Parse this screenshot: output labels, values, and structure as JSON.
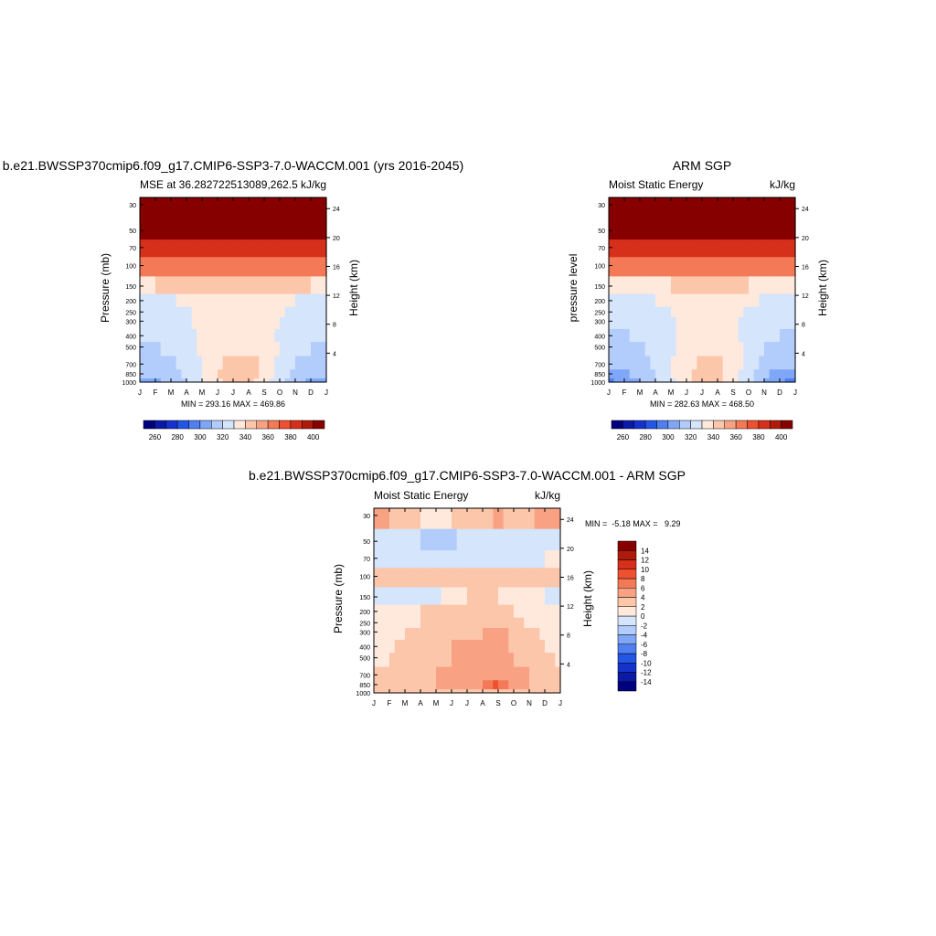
{
  "colors": {
    "mse_palette": [
      "#00007f",
      "#0a1aa6",
      "#1533cc",
      "#2456e6",
      "#4f7ff0",
      "#7fa6f7",
      "#b2ccfb",
      "#d4e5fc",
      "#ffe9dc",
      "#fcc6ab",
      "#f9a283",
      "#f47a57",
      "#ee5030",
      "#d6301a",
      "#b01a0b",
      "#870000"
    ],
    "diff_palette": [
      "#00007f",
      "#0a1aa6",
      "#1533cc",
      "#2456e6",
      "#4f7ff0",
      "#7fa6f7",
      "#b2ccfb",
      "#d4e5fc",
      "#ffe9dc",
      "#fcc6ab",
      "#f9a283",
      "#f47a57",
      "#ee5030",
      "#d6301a",
      "#b01a0b",
      "#870000"
    ]
  },
  "panels": {
    "model": {
      "title": "b.e21.BWSSP370cmip6.f09_g17.CMIP6-SSP3-7.0-WACCM.001 (yrs 2016-2045)",
      "left_string": "MSE at 36.282722513089,262.5",
      "right_string": "kJ/kg",
      "ylabel": "Pressure (mb)",
      "y2label": "Height (km)",
      "stats": "MIN = 293.16 MAX = 469.86"
    },
    "obs": {
      "title": "ARM SGP",
      "left_string": "Moist Static Energy",
      "right_string": "kJ/kg",
      "ylabel": "pressure level",
      "y2label": "Height (km)",
      "stats": "MIN = 282.63 MAX = 468.50"
    },
    "diff": {
      "title": "b.e21.BWSSP370cmip6.f09_g17.CMIP6-SSP3-7.0-WACCM.001 - ARM SGP",
      "left_string": "Moist Static Energy",
      "right_string": "kJ/kg",
      "ylabel": "Pressure (mb)",
      "y2label": "Height (km)",
      "stats": "MIN =  -5.18 MAX =   9.29"
    }
  },
  "chart_data": [
    {
      "type": "heatmap",
      "name": "model",
      "x": [
        "J",
        "F",
        "M",
        "A",
        "M",
        "J",
        "J",
        "A",
        "S",
        "O",
        "N",
        "D",
        "J"
      ],
      "y_pressure": [
        1000,
        850,
        700,
        500,
        400,
        300,
        250,
        200,
        150,
        100,
        70,
        50,
        30
      ],
      "y_ticks": [
        1000,
        850,
        700,
        500,
        400,
        300,
        250,
        200,
        150,
        100,
        70,
        50,
        30
      ],
      "y2_ticks": [
        4,
        8,
        12,
        16,
        20,
        24
      ],
      "yscale": "log",
      "levels": [
        255,
        265,
        275,
        285,
        295,
        305,
        315,
        325,
        335,
        345,
        355,
        365,
        375,
        385,
        395
      ],
      "colorbar_labels": [
        "260",
        "280",
        "300",
        "320",
        "340",
        "360",
        "380",
        "400"
      ],
      "values": [
        [
          300,
          303,
          308,
          316,
          324,
          333,
          340,
          338,
          329,
          318,
          309,
          303,
          300
        ],
        [
          305,
          307,
          311,
          318,
          326,
          334,
          340,
          339,
          331,
          321,
          312,
          307,
          305
        ],
        [
          310,
          311,
          314,
          319,
          326,
          333,
          338,
          338,
          332,
          323,
          315,
          311,
          310
        ],
        [
          314,
          314,
          316,
          320,
          326,
          331,
          334,
          334,
          330,
          324,
          318,
          315,
          314
        ],
        [
          316,
          316,
          318,
          321,
          326,
          330,
          332,
          332,
          329,
          324,
          319,
          317,
          316
        ],
        [
          318,
          318,
          320,
          323,
          327,
          330,
          332,
          332,
          329,
          325,
          321,
          319,
          318
        ],
        [
          319,
          319,
          321,
          324,
          327,
          330,
          331,
          331,
          329,
          326,
          322,
          320,
          319
        ],
        [
          323,
          323,
          324,
          326,
          328,
          331,
          332,
          332,
          330,
          328,
          325,
          324,
          323
        ],
        [
          334,
          335,
          335,
          336,
          337,
          338,
          338,
          338,
          338,
          337,
          336,
          335,
          334
        ],
        [
          356,
          356,
          356,
          356,
          356,
          356,
          356,
          356,
          356,
          356,
          356,
          356,
          356
        ],
        [
          384,
          384,
          383,
          382,
          381,
          380,
          380,
          380,
          381,
          382,
          383,
          384,
          384
        ],
        [
          405,
          405,
          405,
          405,
          405,
          405,
          405,
          405,
          405,
          405,
          405,
          405,
          405
        ],
        [
          440,
          440,
          440,
          440,
          440,
          440,
          440,
          440,
          440,
          440,
          440,
          440,
          440
        ]
      ]
    },
    {
      "type": "heatmap",
      "name": "obs",
      "x": [
        "J",
        "F",
        "M",
        "A",
        "M",
        "J",
        "J",
        "A",
        "S",
        "O",
        "N",
        "D",
        "J"
      ],
      "y_pressure": [
        1000,
        850,
        700,
        500,
        400,
        300,
        250,
        200,
        150,
        100,
        70,
        50,
        30
      ],
      "y_ticks": [
        1000,
        850,
        700,
        500,
        400,
        300,
        250,
        200,
        150,
        100,
        70,
        50,
        30
      ],
      "y2_ticks": [
        4,
        8,
        12,
        16,
        20,
        24
      ],
      "yscale": "log",
      "levels": [
        255,
        265,
        275,
        285,
        295,
        305,
        315,
        325,
        335,
        345,
        355,
        365,
        375,
        385,
        395
      ],
      "colorbar_labels": [
        "260",
        "280",
        "300",
        "320",
        "340",
        "360",
        "380",
        "400"
      ],
      "values": [
        [
          293,
          298,
          305,
          314,
          323,
          333,
          339,
          338,
          329,
          317,
          305,
          296,
          293
        ],
        [
          299,
          302,
          308,
          316,
          324,
          333,
          339,
          338,
          330,
          319,
          308,
          301,
          299
        ],
        [
          305,
          307,
          311,
          317,
          325,
          332,
          336,
          336,
          331,
          321,
          312,
          307,
          305
        ],
        [
          311,
          312,
          314,
          318,
          324,
          329,
          331,
          331,
          328,
          322,
          315,
          312,
          311
        ],
        [
          314,
          314,
          316,
          319,
          323,
          327,
          328,
          328,
          326,
          322,
          317,
          315,
          314
        ],
        [
          317,
          317,
          318,
          321,
          324,
          327,
          328,
          328,
          326,
          323,
          320,
          318,
          317
        ],
        [
          318,
          318,
          320,
          322,
          325,
          327,
          328,
          328,
          326,
          324,
          321,
          319,
          318
        ],
        [
          322,
          322,
          323,
          325,
          327,
          329,
          330,
          330,
          329,
          327,
          324,
          323,
          322
        ],
        [
          333,
          333,
          334,
          334,
          335,
          336,
          336,
          336,
          336,
          335,
          334,
          334,
          333
        ],
        [
          356,
          356,
          356,
          356,
          356,
          356,
          356,
          356,
          356,
          356,
          356,
          356,
          356
        ],
        [
          384,
          384,
          383,
          382,
          381,
          380,
          380,
          380,
          381,
          382,
          383,
          384,
          384
        ],
        [
          405,
          405,
          405,
          405,
          405,
          405,
          405,
          405,
          405,
          405,
          405,
          405,
          405
        ],
        [
          440,
          440,
          440,
          440,
          440,
          440,
          440,
          440,
          440,
          440,
          440,
          440,
          440
        ]
      ]
    },
    {
      "type": "heatmap",
      "name": "diff",
      "x": [
        "J",
        "F",
        "M",
        "A",
        "M",
        "J",
        "J",
        "A",
        "S",
        "O",
        "N",
        "D",
        "J"
      ],
      "y_pressure": [
        1000,
        850,
        700,
        500,
        400,
        300,
        250,
        200,
        150,
        100,
        70,
        50,
        30
      ],
      "y_ticks": [
        1000,
        850,
        700,
        500,
        400,
        300,
        250,
        200,
        150,
        100,
        70,
        50,
        30
      ],
      "y2_ticks": [
        4,
        8,
        12,
        16,
        20,
        24
      ],
      "yscale": "log",
      "levels": [
        -15,
        -13,
        -11,
        -9,
        -7,
        -5,
        -3,
        -1,
        1,
        3,
        5,
        7,
        9,
        11,
        13
      ],
      "colorbar_labels": [
        "14",
        "12",
        "10",
        "8",
        "6",
        "4",
        "2",
        "0",
        "-2",
        "-4",
        "-6",
        "-8",
        "-10",
        "-12",
        "-14"
      ],
      "values": [
        [
          1.5,
          1.2,
          1.0,
          1.5,
          2.0,
          2.0,
          2.5,
          2.5,
          3.0,
          2.0,
          1.5,
          1.2,
          1.5
        ],
        [
          1.5,
          1.5,
          1.5,
          2.5,
          3.0,
          3.5,
          4.5,
          4.5,
          7.5,
          4.0,
          3.0,
          2.0,
          1.5
        ],
        [
          1.5,
          1.5,
          1.5,
          2.0,
          3.0,
          3.5,
          4.0,
          4.5,
          5.0,
          4.0,
          3.0,
          2.0,
          1.5
        ],
        [
          0.8,
          1.0,
          1.5,
          2.0,
          2.5,
          3.0,
          3.5,
          3.5,
          4.0,
          3.0,
          2.5,
          1.5,
          0.8
        ],
        [
          0.5,
          0.8,
          1.5,
          2.0,
          2.5,
          3.0,
          3.0,
          3.0,
          4.5,
          2.5,
          2.0,
          1.0,
          0.5
        ],
        [
          0.3,
          0.5,
          1.0,
          1.5,
          2.5,
          2.5,
          2.5,
          3.0,
          4.0,
          2.5,
          1.5,
          0.8,
          0.3
        ],
        [
          -0.5,
          -0.3,
          0.3,
          1.0,
          1.5,
          2.0,
          2.0,
          2.5,
          2.5,
          1.5,
          0.8,
          0.2,
          -0.5
        ],
        [
          -0.5,
          -0.5,
          0.5,
          1.0,
          1.5,
          1.5,
          1.5,
          1.5,
          1.5,
          1.0,
          0.5,
          -0.3,
          -0.5
        ],
        [
          -2.0,
          -1.0,
          -1.5,
          -3.0,
          -1.5,
          0.5,
          1.0,
          1.5,
          1.0,
          0.5,
          -0.5,
          -1.0,
          -2.0
        ],
        [
          1.5,
          1.0,
          1.5,
          1.0,
          1.5,
          1.5,
          2.0,
          2.5,
          2.5,
          2.5,
          1.5,
          1.0,
          1.5
        ],
        [
          -1.0,
          -1.5,
          -1.5,
          -1.5,
          -1.5,
          -1.5,
          -1.0,
          -1.5,
          -2.0,
          -2.0,
          -1.5,
          -1.0,
          -1.0
        ],
        [
          -1.5,
          -2.0,
          -2.5,
          -3.0,
          -5.0,
          -4.5,
          -1.5,
          -1.5,
          -2.5,
          -2.5,
          -2.0,
          -1.5,
          -1.5
        ],
        [
          4.0,
          3.0,
          1.5,
          1.0,
          0.5,
          1.0,
          1.0,
          2.0,
          3.5,
          2.0,
          2.5,
          3.5,
          4.0
        ]
      ]
    }
  ]
}
